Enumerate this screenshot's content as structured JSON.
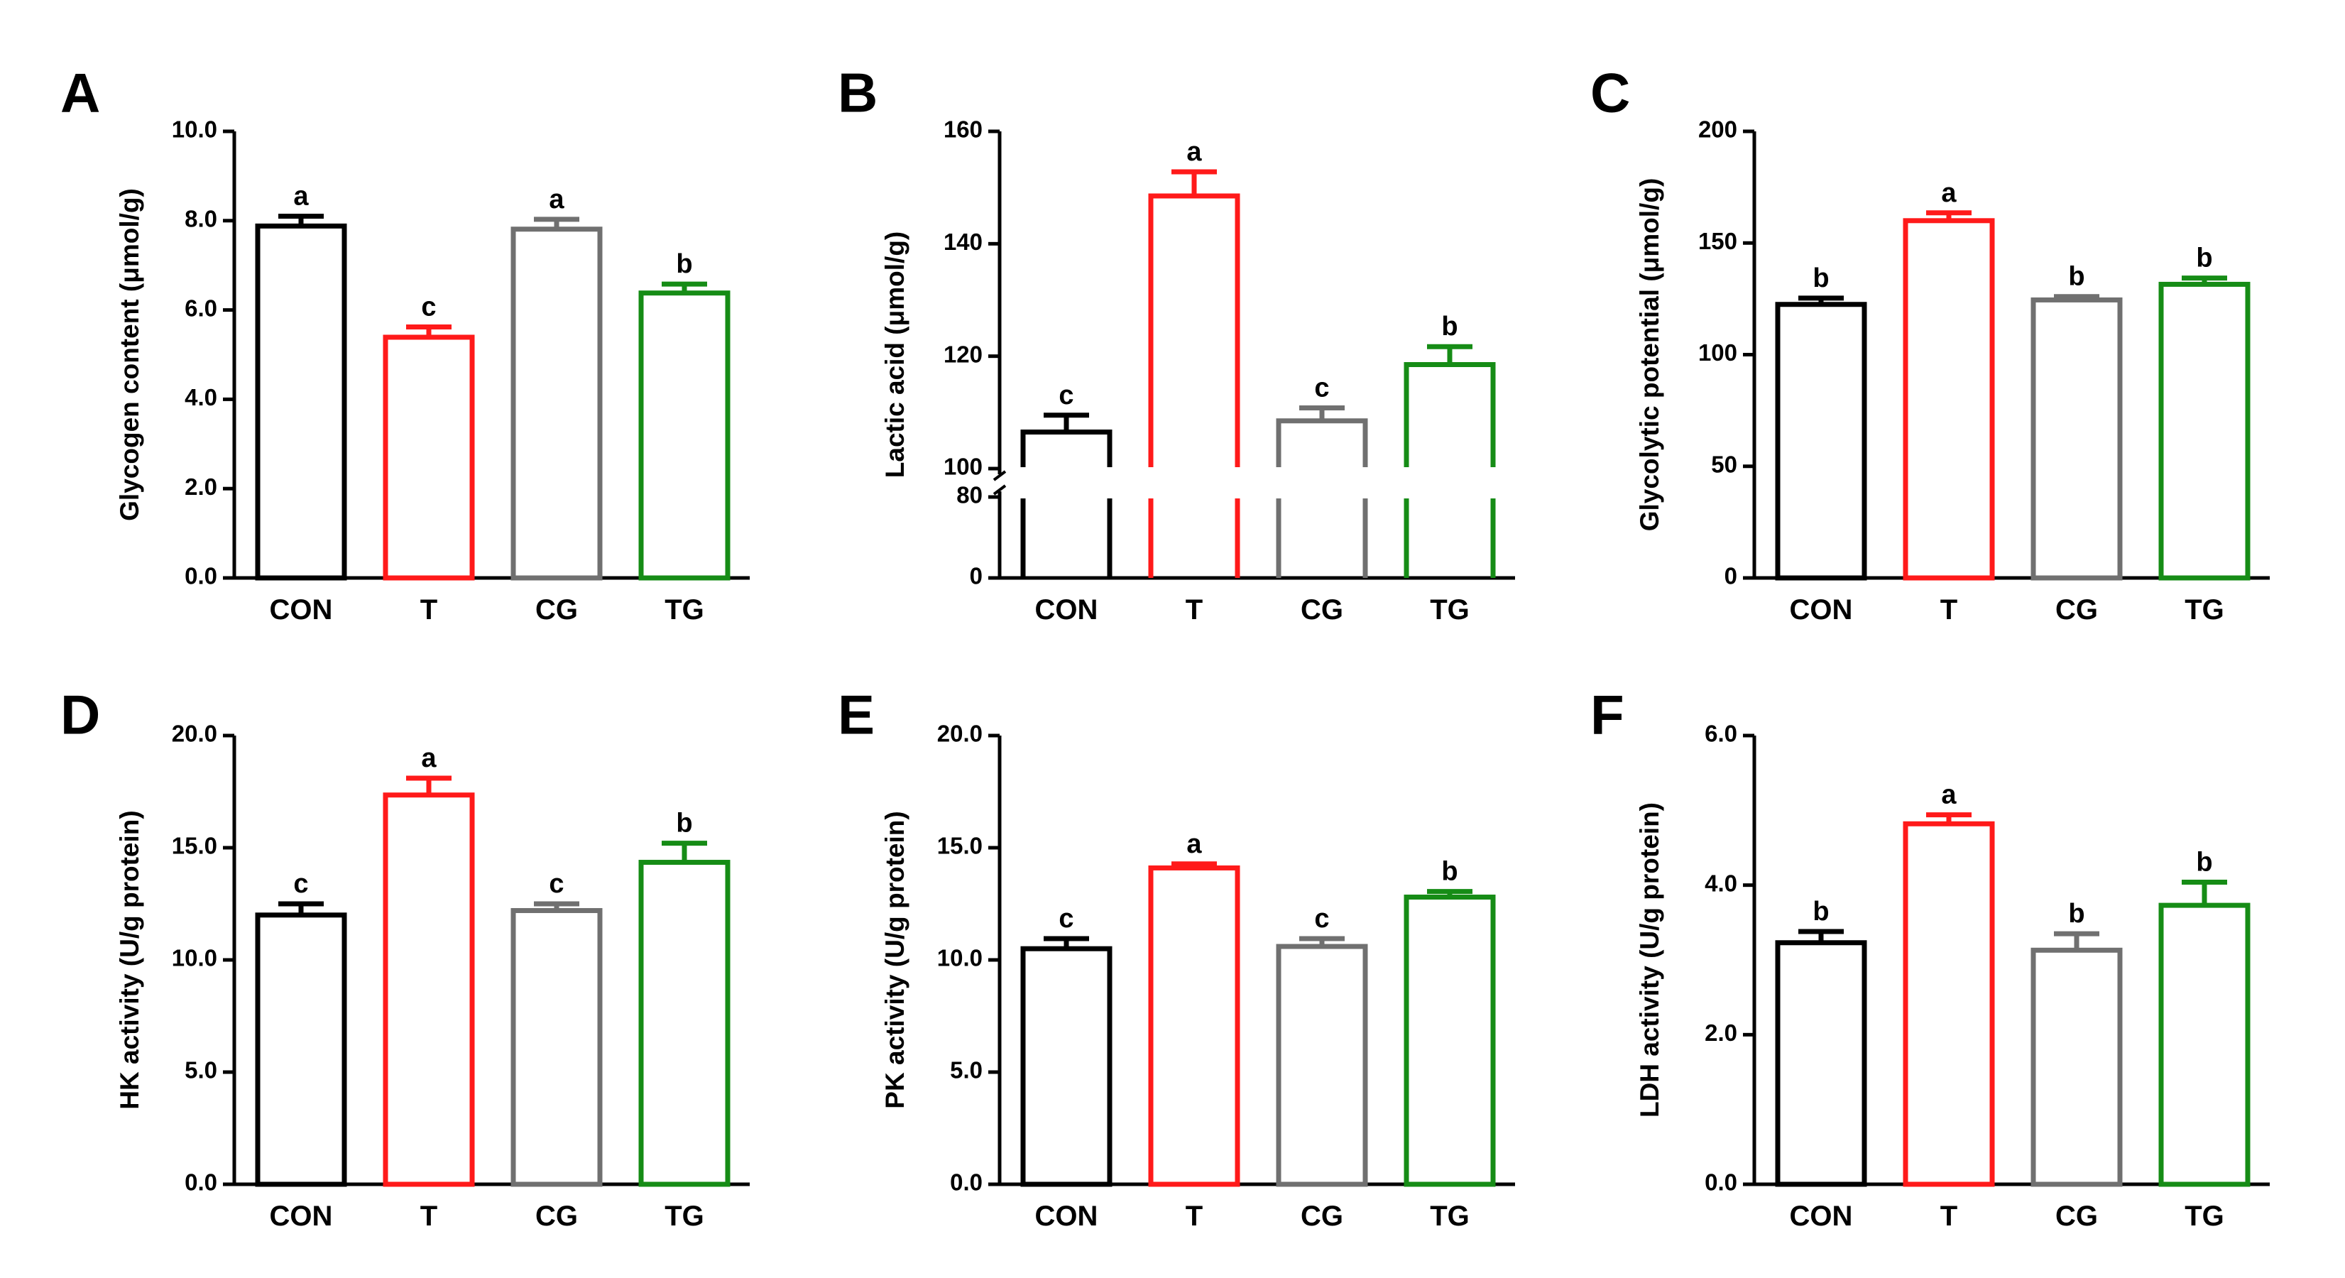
{
  "figure": {
    "title": ""
  },
  "colors": {
    "CON": "#000000",
    "T": "#ff1a1a",
    "CG": "#707070",
    "TG": "#168c16",
    "axis": "#000000"
  },
  "chart_data": [
    {
      "panel": "A",
      "type": "bar",
      "ylabel": "Glycogen content (μmol/g)",
      "categories": [
        "CON",
        "T",
        "CG",
        "TG"
      ],
      "values": [
        7.88,
        5.39,
        7.81,
        6.38
      ],
      "errors": [
        0.22,
        0.23,
        0.22,
        0.2
      ],
      "significance": [
        "a",
        "c",
        "a",
        "b"
      ],
      "ylim": [
        0,
        10
      ],
      "ticks": [
        0,
        2,
        4,
        6,
        8,
        10
      ],
      "tick_labels": [
        "0.0",
        "2.0",
        "4.0",
        "6.0",
        "8.0",
        "10.0"
      ]
    },
    {
      "panel": "B",
      "type": "bar",
      "ylabel": "Lactic acid (μmol/g)",
      "categories": [
        "CON",
        "T",
        "CG",
        "TG"
      ],
      "values": [
        106.5,
        148.5,
        108.5,
        118.5
      ],
      "errors": [
        3.0,
        4.3,
        2.3,
        3.2
      ],
      "significance": [
        "c",
        "a",
        "c",
        "b"
      ],
      "broken_axis": true,
      "lower_ylim": [
        0,
        80
      ],
      "upper_ylim": [
        100,
        160
      ],
      "ticks": [
        0,
        80,
        100,
        120,
        140,
        160
      ],
      "tick_labels": [
        "0",
        "80",
        "100",
        "120",
        "140",
        "160"
      ]
    },
    {
      "panel": "C",
      "type": "bar",
      "ylabel": "Glycolytic potential (μmol/g)",
      "categories": [
        "CON",
        "T",
        "CG",
        "TG"
      ],
      "values": [
        122.5,
        160,
        124.5,
        131.5
      ],
      "errors": [
        2.8,
        3.5,
        1.5,
        2.8
      ],
      "significance": [
        "b",
        "a",
        "b",
        "b"
      ],
      "ylim": [
        0,
        200
      ],
      "ticks": [
        0,
        50,
        100,
        150,
        200
      ],
      "tick_labels": [
        "0",
        "50",
        "100",
        "150",
        "200"
      ]
    },
    {
      "panel": "D",
      "type": "bar",
      "ylabel": "HK activity (U/g protein)",
      "categories": [
        "CON",
        "T",
        "CG",
        "TG"
      ],
      "values": [
        12.0,
        17.35,
        12.2,
        14.35
      ],
      "errors": [
        0.5,
        0.75,
        0.3,
        0.85
      ],
      "significance": [
        "c",
        "a",
        "c",
        "b"
      ],
      "ylim": [
        0,
        20
      ],
      "ticks": [
        0,
        5,
        10,
        15,
        20
      ],
      "tick_labels": [
        "0.0",
        "5.0",
        "10.0",
        "15.0",
        "20.0"
      ]
    },
    {
      "panel": "E",
      "type": "bar",
      "ylabel": "PK activity (U/g protein)",
      "categories": [
        "CON",
        "T",
        "CG",
        "TG"
      ],
      "values": [
        10.5,
        14.1,
        10.6,
        12.8
      ],
      "errors": [
        0.45,
        0.18,
        0.35,
        0.25
      ],
      "significance": [
        "c",
        "a",
        "c",
        "b"
      ],
      "ylim": [
        0,
        20
      ],
      "ticks": [
        0,
        5,
        10,
        15,
        20
      ],
      "tick_labels": [
        "0.0",
        "5.0",
        "10.0",
        "15.0",
        "20.0"
      ]
    },
    {
      "panel": "F",
      "type": "bar",
      "ylabel": "LDH activity (U/g protein)",
      "categories": [
        "CON",
        "T",
        "CG",
        "TG"
      ],
      "values": [
        3.23,
        4.82,
        3.13,
        3.73
      ],
      "errors": [
        0.15,
        0.12,
        0.22,
        0.31
      ],
      "significance": [
        "b",
        "a",
        "b",
        "b"
      ],
      "ylim": [
        0,
        6
      ],
      "ticks": [
        0,
        2,
        4,
        6
      ],
      "tick_labels": [
        "0.0",
        "2.0",
        "4.0",
        "6.0"
      ]
    }
  ]
}
